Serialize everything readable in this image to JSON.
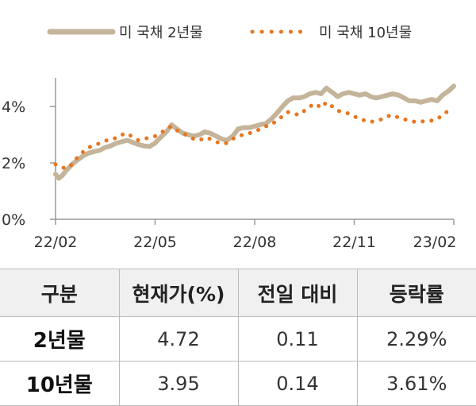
{
  "chart_data": {
    "type": "line",
    "legend_position": "top",
    "grid": false,
    "x_ticks": [
      "22/02",
      "22/05",
      "22/08",
      "22/11",
      "23/02"
    ],
    "y_ticks": [
      "0%",
      "2%",
      "4%"
    ],
    "ylim": [
      0,
      5
    ],
    "series": [
      {
        "name": "미 국채 2년물",
        "color": "#c4b49a",
        "style": "solid",
        "points": [
          [
            0.0,
            1.6
          ],
          [
            0.05,
            1.45
          ],
          [
            0.1,
            1.55
          ],
          [
            0.17,
            1.75
          ],
          [
            0.25,
            1.95
          ],
          [
            0.33,
            2.1
          ],
          [
            0.42,
            2.25
          ],
          [
            0.5,
            2.35
          ],
          [
            0.58,
            2.4
          ],
          [
            0.67,
            2.45
          ],
          [
            0.75,
            2.55
          ],
          [
            0.83,
            2.6
          ],
          [
            0.92,
            2.7
          ],
          [
            1.0,
            2.75
          ],
          [
            1.08,
            2.8
          ],
          [
            1.17,
            2.72
          ],
          [
            1.25,
            2.65
          ],
          [
            1.33,
            2.6
          ],
          [
            1.42,
            2.58
          ],
          [
            1.5,
            2.7
          ],
          [
            1.58,
            2.9
          ],
          [
            1.67,
            3.1
          ],
          [
            1.75,
            3.35
          ],
          [
            1.83,
            3.2
          ],
          [
            1.92,
            3.05
          ],
          [
            2.0,
            3.0
          ],
          [
            2.08,
            2.95
          ],
          [
            2.17,
            3.0
          ],
          [
            2.25,
            3.1
          ],
          [
            2.33,
            3.05
          ],
          [
            2.42,
            2.95
          ],
          [
            2.5,
            2.85
          ],
          [
            2.58,
            2.8
          ],
          [
            2.67,
            2.95
          ],
          [
            2.75,
            3.2
          ],
          [
            2.83,
            3.25
          ],
          [
            2.92,
            3.25
          ],
          [
            3.0,
            3.3
          ],
          [
            3.08,
            3.35
          ],
          [
            3.17,
            3.4
          ],
          [
            3.25,
            3.55
          ],
          [
            3.33,
            3.75
          ],
          [
            3.42,
            4.0
          ],
          [
            3.5,
            4.2
          ],
          [
            3.58,
            4.3
          ],
          [
            3.67,
            4.3
          ],
          [
            3.75,
            4.35
          ],
          [
            3.83,
            4.45
          ],
          [
            3.92,
            4.5
          ],
          [
            4.0,
            4.45
          ],
          [
            4.08,
            4.65
          ],
          [
            4.17,
            4.5
          ],
          [
            4.25,
            4.35
          ],
          [
            4.33,
            4.45
          ],
          [
            4.42,
            4.5
          ],
          [
            4.5,
            4.45
          ],
          [
            4.58,
            4.4
          ],
          [
            4.67,
            4.45
          ],
          [
            4.75,
            4.35
          ],
          [
            4.83,
            4.3
          ],
          [
            4.92,
            4.35
          ],
          [
            5.0,
            4.4
          ],
          [
            5.08,
            4.45
          ],
          [
            5.17,
            4.4
          ],
          [
            5.25,
            4.3
          ],
          [
            5.33,
            4.2
          ],
          [
            5.42,
            4.2
          ],
          [
            5.5,
            4.15
          ],
          [
            5.58,
            4.2
          ],
          [
            5.67,
            4.25
          ],
          [
            5.75,
            4.2
          ],
          [
            5.83,
            4.4
          ],
          [
            5.92,
            4.55
          ],
          [
            6.0,
            4.72
          ]
        ]
      },
      {
        "name": "미 국채 10년물",
        "color": "#e8761f",
        "style": "dotted",
        "points": [
          [
            0.0,
            1.95
          ],
          [
            0.08,
            1.85
          ],
          [
            0.17,
            1.8
          ],
          [
            0.25,
            1.95
          ],
          [
            0.33,
            2.2
          ],
          [
            0.42,
            2.4
          ],
          [
            0.5,
            2.55
          ],
          [
            0.58,
            2.62
          ],
          [
            0.67,
            2.7
          ],
          [
            0.75,
            2.78
          ],
          [
            0.83,
            2.85
          ],
          [
            0.92,
            2.88
          ],
          [
            1.0,
            3.0
          ],
          [
            1.08,
            3.05
          ],
          [
            1.17,
            2.9
          ],
          [
            1.25,
            2.8
          ],
          [
            1.33,
            2.85
          ],
          [
            1.42,
            2.9
          ],
          [
            1.5,
            2.95
          ],
          [
            1.58,
            3.05
          ],
          [
            1.67,
            3.2
          ],
          [
            1.75,
            3.3
          ],
          [
            1.83,
            3.15
          ],
          [
            1.92,
            3.05
          ],
          [
            2.0,
            2.95
          ],
          [
            2.08,
            2.85
          ],
          [
            2.17,
            2.8
          ],
          [
            2.25,
            2.9
          ],
          [
            2.33,
            2.85
          ],
          [
            2.42,
            2.75
          ],
          [
            2.5,
            2.68
          ],
          [
            2.58,
            2.7
          ],
          [
            2.67,
            2.85
          ],
          [
            2.75,
            2.95
          ],
          [
            2.83,
            3.0
          ],
          [
            2.92,
            3.05
          ],
          [
            3.0,
            3.1
          ],
          [
            3.08,
            3.2
          ],
          [
            3.17,
            3.3
          ],
          [
            3.25,
            3.35
          ],
          [
            3.33,
            3.5
          ],
          [
            3.42,
            3.65
          ],
          [
            3.5,
            3.8
          ],
          [
            3.58,
            3.75
          ],
          [
            3.67,
            3.7
          ],
          [
            3.75,
            3.85
          ],
          [
            3.83,
            4.0
          ],
          [
            3.92,
            4.1
          ],
          [
            4.0,
            3.95
          ],
          [
            4.08,
            4.15
          ],
          [
            4.17,
            4.0
          ],
          [
            4.25,
            3.85
          ],
          [
            4.33,
            3.8
          ],
          [
            4.42,
            3.75
          ],
          [
            4.5,
            3.65
          ],
          [
            4.58,
            3.55
          ],
          [
            4.67,
            3.5
          ],
          [
            4.75,
            3.45
          ],
          [
            4.83,
            3.5
          ],
          [
            4.92,
            3.55
          ],
          [
            5.0,
            3.65
          ],
          [
            5.08,
            3.7
          ],
          [
            5.17,
            3.6
          ],
          [
            5.25,
            3.55
          ],
          [
            5.33,
            3.5
          ],
          [
            5.42,
            3.45
          ],
          [
            5.5,
            3.45
          ],
          [
            5.58,
            3.5
          ],
          [
            5.67,
            3.5
          ],
          [
            5.75,
            3.55
          ],
          [
            5.83,
            3.7
          ],
          [
            5.92,
            3.85
          ],
          [
            6.0,
            3.95
          ]
        ]
      }
    ]
  },
  "table": {
    "headers": [
      "구분",
      "현재가(%)",
      "전일 대비",
      "등락률"
    ],
    "rows": [
      {
        "label": "2년물",
        "current": "4.72",
        "change": "0.11",
        "rate": "2.29%"
      },
      {
        "label": "10년물",
        "current": "3.95",
        "change": "0.14",
        "rate": "3.61%"
      }
    ]
  }
}
